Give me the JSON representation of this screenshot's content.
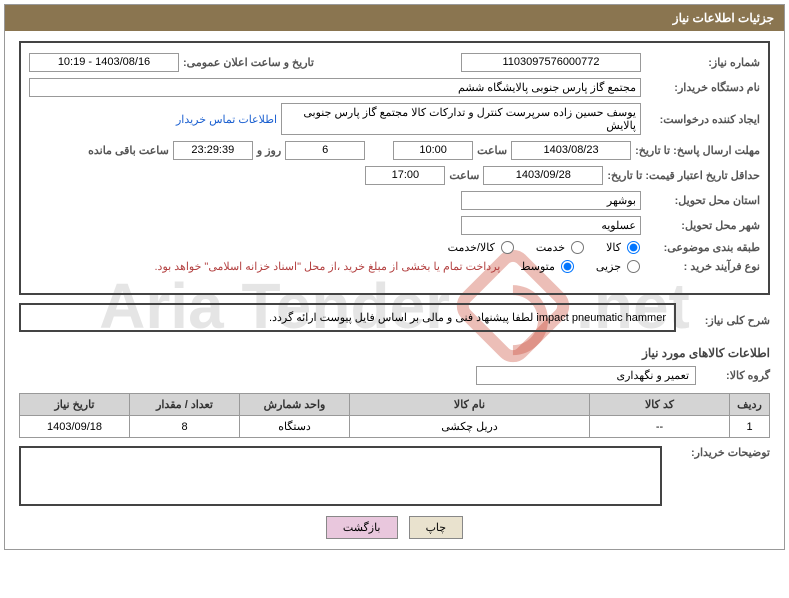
{
  "panel_title": "جزئیات اطلاعات نیاز",
  "watermark_text_left": "Aria Tender",
  "watermark_text_right": ".net",
  "need_no_label": "شماره نیاز:",
  "need_no": "1103097576000772",
  "announce_label": "تاریخ و ساعت اعلان عمومی:",
  "announce_value": "1403/08/16 - 10:19",
  "buyer_org_label": "نام دستگاه خریدار:",
  "buyer_org": "مجتمع گاز پارس جنوبی  پالایشگاه ششم",
  "requester_label": "ایجاد کننده درخواست:",
  "requester": "یوسف حسین زاده سرپرست کنترل و تدارکات کالا مجتمع گاز پارس جنوبی  پالایش",
  "buyer_contact_link": "اطلاعات تماس خریدار",
  "deadline_send_label": "مهلت ارسال پاسخ: تا تاریخ:",
  "deadline_send_date": "1403/08/23",
  "time_label": "ساعت",
  "deadline_send_time": "10:00",
  "days_value": "6",
  "days_and_label": "روز و",
  "countdown": "23:29:39",
  "remaining_label": "ساعت باقی مانده",
  "min_validity_label": "حداقل تاریخ اعتبار قیمت: تا تاریخ:",
  "min_validity_date": "1403/09/28",
  "min_validity_time": "17:00",
  "province_label": "استان محل تحویل:",
  "province": "بوشهر",
  "city_label": "شهر محل تحویل:",
  "city": "عسلویه",
  "category_label": "طبقه بندی موضوعی:",
  "cat_goods": "کالا",
  "cat_service": "خدمت",
  "cat_goods_service": "کالا/خدمت",
  "process_label": "نوع فرآیند خرید :",
  "proc_minor": "جزیی",
  "proc_medium": "متوسط",
  "payment_note": "پرداخت تمام یا بخشی از مبلغ خرید ،از محل \"اسناد خزانه اسلامی\" خواهد بود.",
  "overall_desc_label": "شرح کلی نیاز:",
  "overall_desc": "impact pneumatic hammer لطفا پیشنهاد فنی و مالی بر اساس فایل پیوست ارائه گردد.",
  "items_info_title": "اطلاعات کالاهای مورد نیاز",
  "group_label": "گروه کالا:",
  "group_value": "تعمیر و نگهداری",
  "table": {
    "cols": [
      "ردیف",
      "کد کالا",
      "نام کالا",
      "واحد شمارش",
      "تعداد / مقدار",
      "تاریخ نیاز"
    ],
    "widths": [
      "40px",
      "140px",
      "auto",
      "110px",
      "110px",
      "110px"
    ],
    "rows": [
      [
        "1",
        "--",
        "دریل چکشی",
        "دستگاه",
        "8",
        "1403/09/18"
      ]
    ]
  },
  "buyer_notes_label": "توضیحات خریدار:",
  "btn_print": "چاپ",
  "btn_back": "بازگشت"
}
